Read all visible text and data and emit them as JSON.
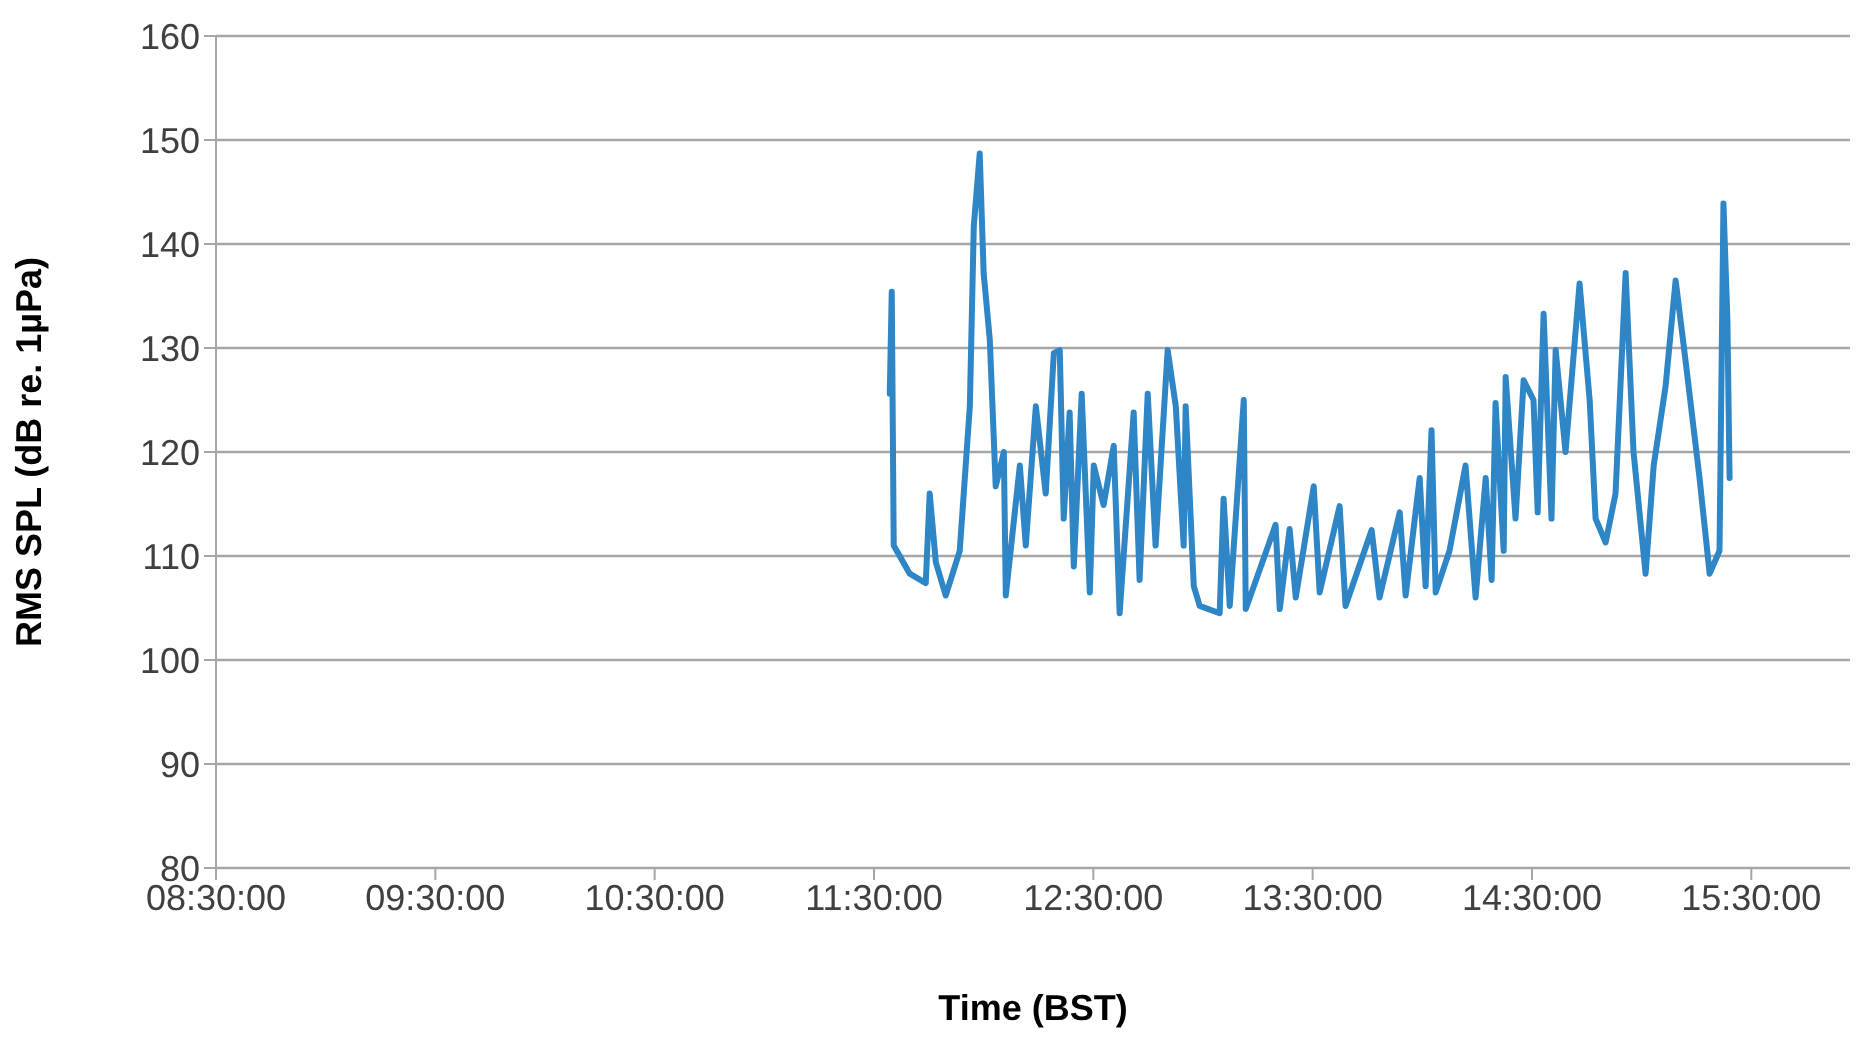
{
  "chart_data": {
    "type": "line",
    "xlabel": "Time (BST)",
    "ylabel": "RMS SPL (dB re. 1µPa)",
    "xlim": [
      8.5,
      15.95
    ],
    "xticks": [
      {
        "value": 8.5,
        "label": "08:30:00"
      },
      {
        "value": 9.5,
        "label": "09:30:00"
      },
      {
        "value": 10.5,
        "label": "10:30:00"
      },
      {
        "value": 11.5,
        "label": "11:30:00"
      },
      {
        "value": 12.5,
        "label": "12:30:00"
      },
      {
        "value": 13.5,
        "label": "13:30:00"
      },
      {
        "value": 14.5,
        "label": "14:30:00"
      },
      {
        "value": 15.5,
        "label": "15:30:00"
      }
    ],
    "ylim": [
      80,
      160
    ],
    "yticks": [
      80,
      90,
      100,
      110,
      120,
      130,
      140,
      150,
      160
    ],
    "grid": "y",
    "legend": false,
    "marker": "none",
    "line_style": "solid",
    "series": [
      {
        "color": "#2e86c6",
        "x": [
          11.572,
          11.581,
          11.59,
          11.663,
          11.736,
          11.754,
          11.782,
          11.827,
          11.891,
          11.937,
          11.955,
          11.982,
          12.0,
          12.028,
          12.055,
          12.092,
          12.101,
          12.165,
          12.192,
          12.238,
          12.283,
          12.32,
          12.347,
          12.365,
          12.392,
          12.411,
          12.447,
          12.484,
          12.502,
          12.547,
          12.593,
          12.62,
          12.684,
          12.711,
          12.748,
          12.784,
          12.839,
          12.876,
          12.912,
          12.921,
          12.958,
          12.985,
          13.076,
          13.094,
          13.122,
          13.186,
          13.195,
          13.331,
          13.35,
          13.395,
          13.423,
          13.505,
          13.532,
          13.623,
          13.65,
          13.769,
          13.805,
          13.897,
          13.924,
          13.988,
          14.015,
          14.042,
          14.061,
          14.124,
          14.197,
          14.243,
          14.289,
          14.316,
          14.334,
          14.371,
          14.38,
          14.425,
          14.462,
          14.507,
          14.526,
          14.553,
          14.589,
          14.608,
          14.653,
          14.717,
          14.763,
          14.79,
          14.836,
          14.881,
          14.927,
          14.963,
          15.018,
          15.055,
          15.109,
          15.155,
          15.2,
          15.264,
          15.31,
          15.355,
          15.373,
          15.391,
          15.401
        ],
        "values": [
          125.6,
          135.4,
          111,
          108.3,
          107.4,
          116,
          109.4,
          106.2,
          110.5,
          124.4,
          141.7,
          148.7,
          137.2,
          130.8,
          116.7,
          120,
          106.2,
          118.7,
          111,
          124.4,
          116,
          129.5,
          129.8,
          113.6,
          123.8,
          109,
          125.6,
          106.5,
          118.7,
          114.9,
          120.6,
          104.5,
          123.8,
          107.7,
          125.6,
          111,
          129.8,
          124.4,
          111,
          124.4,
          107.1,
          105.2,
          104.5,
          115.5,
          105.2,
          125,
          104.9,
          113,
          104.9,
          112.6,
          106,
          116.7,
          106.5,
          114.8,
          105.2,
          112.5,
          106,
          114.2,
          106.2,
          117.5,
          107.1,
          122.1,
          106.5,
          110.5,
          118.7,
          106,
          117.5,
          107.7,
          124.7,
          110.5,
          127.2,
          113.6,
          126.9,
          125,
          114.2,
          133.3,
          113.6,
          129.8,
          120,
          136.2,
          125,
          113.6,
          111.3,
          116,
          137.2,
          120,
          108.3,
          118.7,
          126.3,
          136.5,
          128.8,
          117.5,
          108.3,
          110.5,
          143.9,
          132.7,
          117.5
        ]
      }
    ]
  }
}
